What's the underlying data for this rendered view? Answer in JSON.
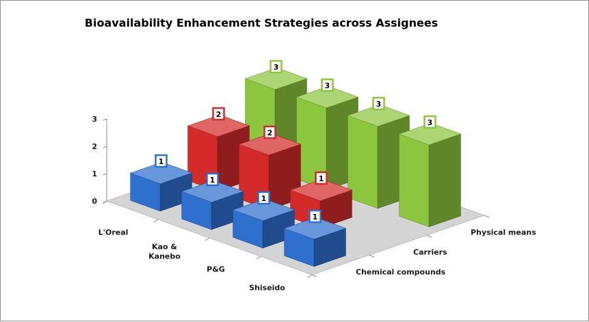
{
  "chart_data": {
    "type": "bar",
    "subtype": "3d-column",
    "title": "Bioavailability Enhancement Strategies across Assignees",
    "categories": [
      "L'Oreal",
      "Kao & Kanebo",
      "P&G",
      "Shiseido"
    ],
    "series": [
      {
        "name": "Chemical compounds",
        "values": [
          1,
          1,
          1,
          1
        ],
        "color": "#2f6fce"
      },
      {
        "name": "Carriers",
        "values": [
          2,
          2,
          1,
          null
        ],
        "color": "#d42a2a"
      },
      {
        "name": "Physical means",
        "values": [
          3,
          3,
          3,
          3
        ],
        "color": "#8cc63e"
      }
    ],
    "ylim": [
      0,
      3
    ],
    "yticks": [
      "0",
      "1",
      "2",
      "3"
    ],
    "data_labels": true,
    "legend": "none",
    "grid": false,
    "floor_color": "#d4d4d4"
  }
}
